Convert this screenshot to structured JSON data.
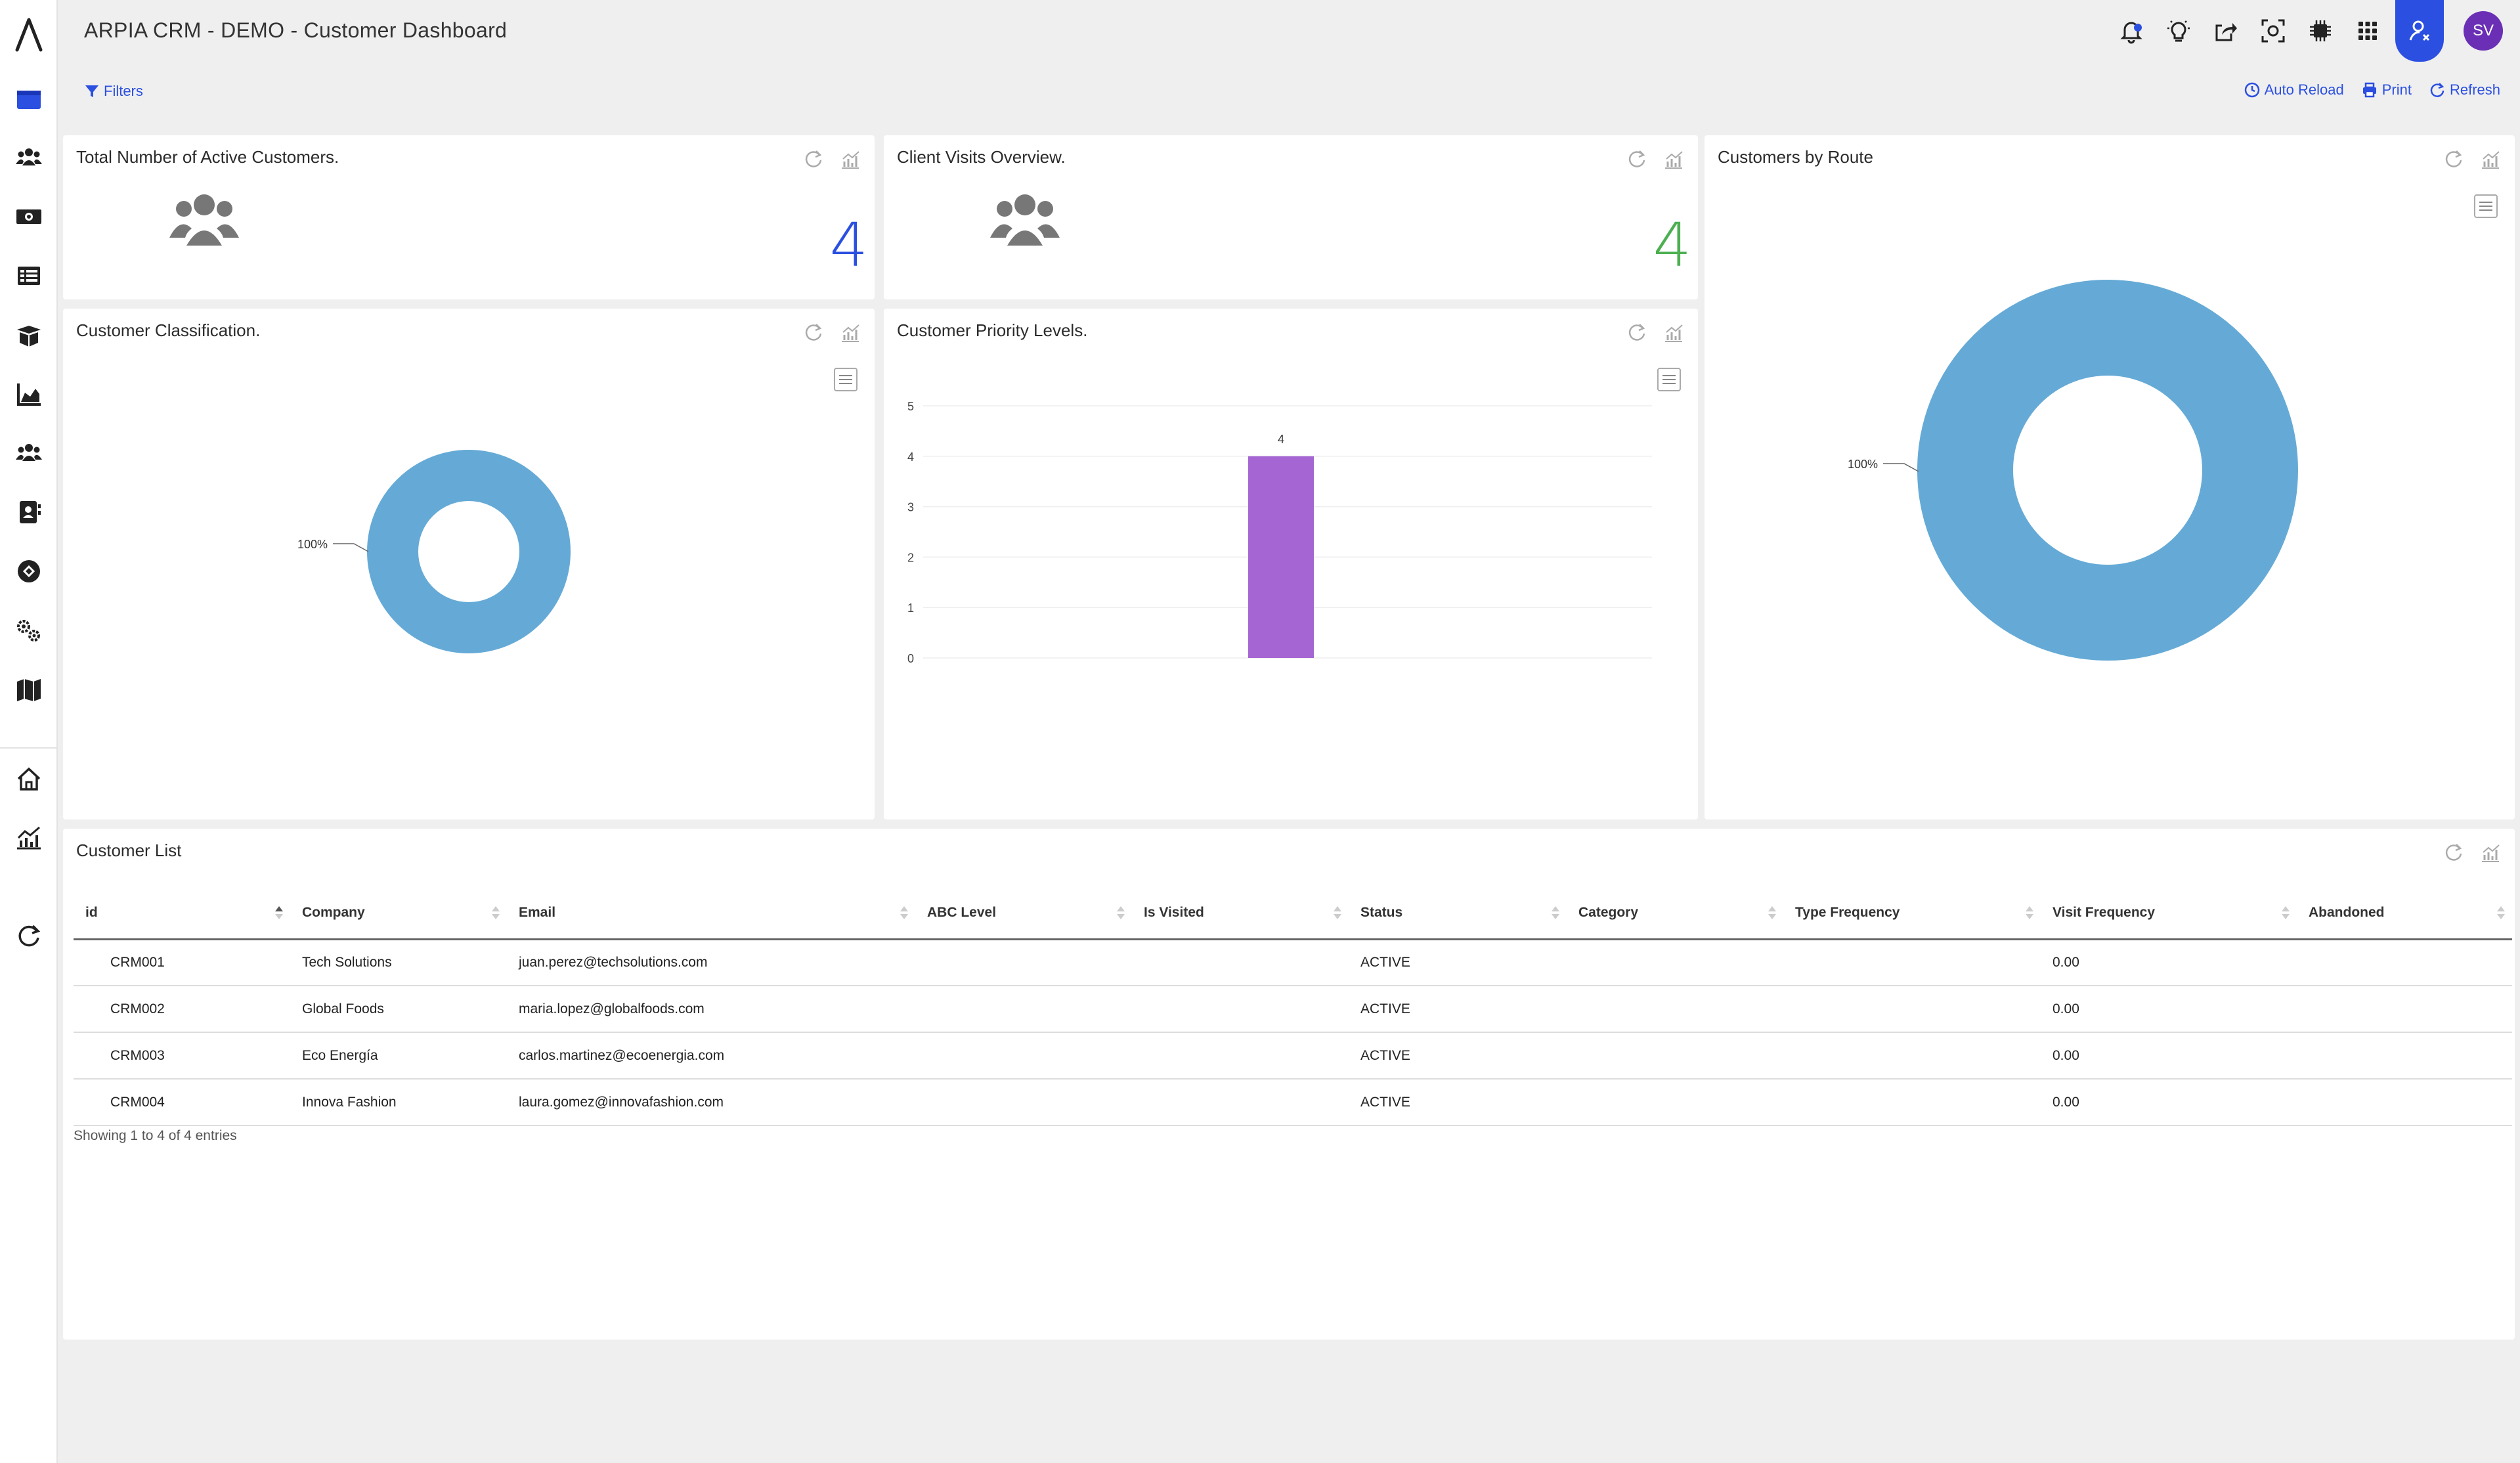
{
  "app": {
    "title": "ARPIA CRM - DEMO - Customer Dashboard",
    "user_initials": "SV"
  },
  "colors": {
    "accent": "#2b4fe0",
    "kpi_blue": "#2b4fe0",
    "kpi_green": "#4caf50",
    "donut": "#65aad6",
    "bar": "#a566d4",
    "avatar": "#6a2fb5"
  },
  "toolbar": {
    "filters": "Filters",
    "auto_reload": "Auto Reload",
    "print": "Print",
    "refresh": "Refresh"
  },
  "cards": {
    "active_customers": {
      "title": "Total Number of Active Customers.",
      "value": "4"
    },
    "client_visits": {
      "title": "Client Visits Overview.",
      "value": "4"
    },
    "by_route": {
      "title": "Customers by Route"
    },
    "classification": {
      "title": "Customer Classification."
    },
    "priority": {
      "title": "Customer Priority Levels."
    }
  },
  "chart_data": [
    {
      "type": "pie",
      "title": "Customer Classification.",
      "slices": [
        {
          "label": "100%",
          "value": 100
        }
      ]
    },
    {
      "type": "bar",
      "title": "Customer Priority Levels.",
      "categories": [
        ""
      ],
      "values": [
        4
      ],
      "data_labels": [
        "4"
      ],
      "ylim": [
        0,
        5
      ],
      "yticks": [
        "0",
        "1",
        "2",
        "3",
        "4",
        "5"
      ]
    },
    {
      "type": "pie",
      "title": "Customers by Route",
      "slices": [
        {
          "label": "100%",
          "value": 100
        }
      ]
    }
  ],
  "table": {
    "title": "Customer List",
    "columns": [
      "id",
      "Company",
      "Email",
      "ABC Level",
      "Is Visited",
      "Status",
      "Category",
      "Type Frequency",
      "Visit Frequency",
      "Abandoned"
    ],
    "rows": [
      [
        "CRM001",
        "Tech Solutions",
        "juan.perez@techsolutions.com",
        "",
        "",
        "ACTIVE",
        "",
        "",
        "0.00",
        ""
      ],
      [
        "CRM002",
        "Global Foods",
        "maria.lopez@globalfoods.com",
        "",
        "",
        "ACTIVE",
        "",
        "",
        "0.00",
        ""
      ],
      [
        "CRM003",
        "Eco Energía",
        "carlos.martinez@ecoenergia.com",
        "",
        "",
        "ACTIVE",
        "",
        "",
        "0.00",
        ""
      ],
      [
        "CRM004",
        "Innova Fashion",
        "laura.gomez@innovafashion.com",
        "",
        "",
        "ACTIVE",
        "",
        "",
        "0.00",
        ""
      ]
    ],
    "footer": "Showing 1 to 4 of 4 entries"
  }
}
